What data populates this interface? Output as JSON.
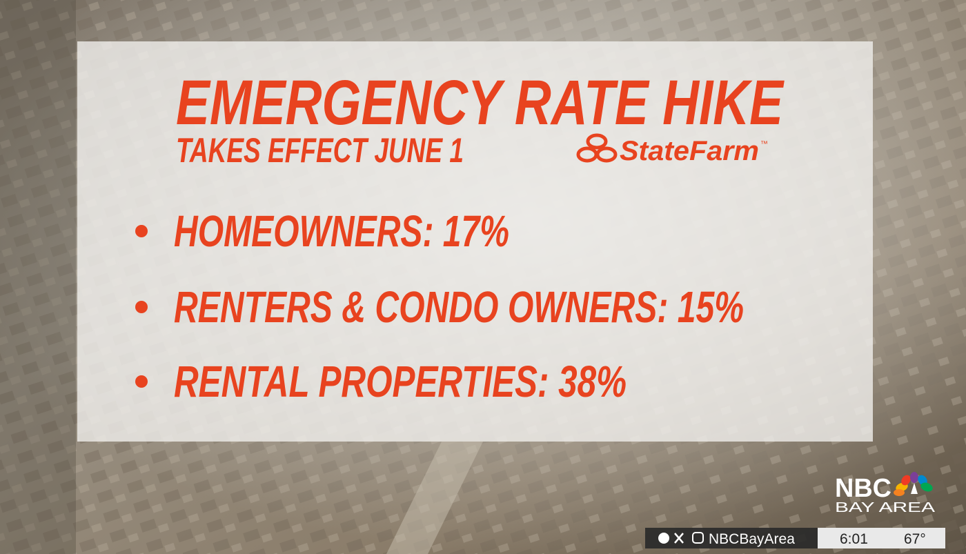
{
  "graphic": {
    "title": "EMERGENCY RATE HIKE",
    "subtitle": "TAKES EFFECT JUNE 1",
    "brand": {
      "name": "StateFarm",
      "mark": "™"
    },
    "items": [
      "HOMEOWNERS: 17%",
      "RENTERS & CONDO OWNERS: 15%",
      "RENTAL PROPERTIES: 38%"
    ]
  },
  "station": {
    "name": "NBC",
    "region": "BAY AREA"
  },
  "ticker": {
    "handle": "NBCBayArea",
    "time": "6:01",
    "temperature": "67°"
  }
}
